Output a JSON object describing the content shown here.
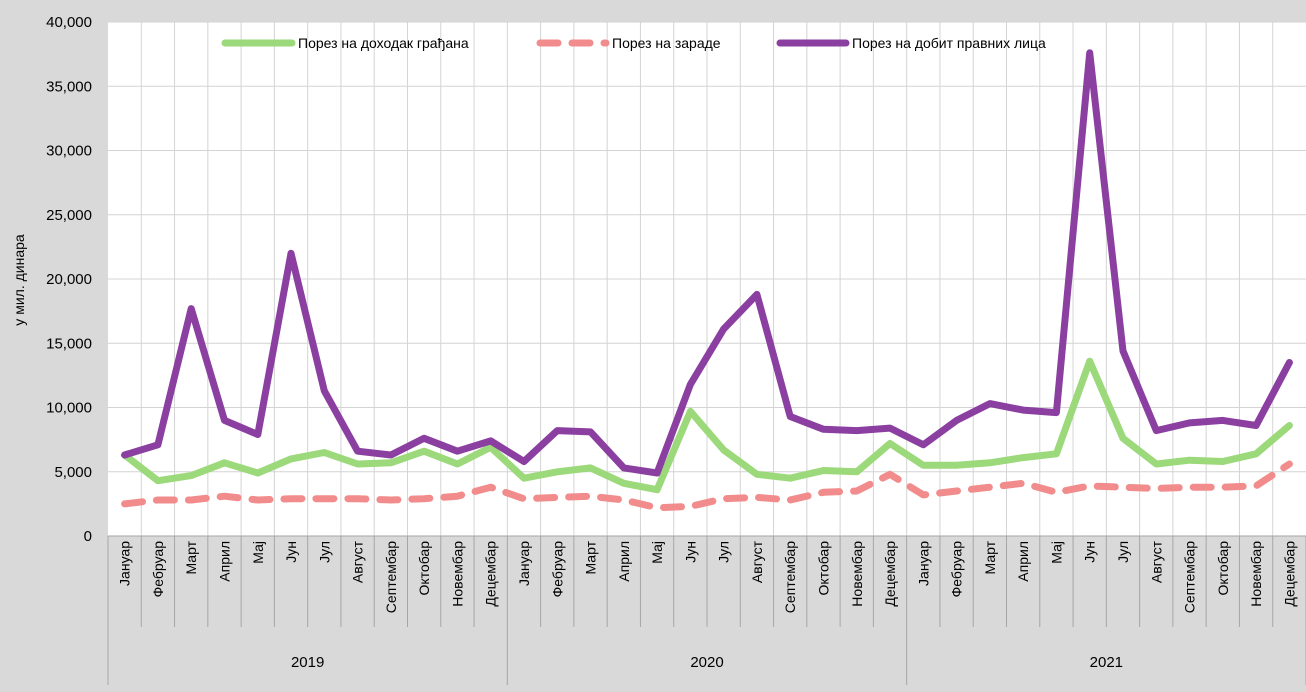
{
  "chart_data": {
    "type": "line",
    "ylabel": "у мил. динара",
    "ylim": [
      0,
      40000
    ],
    "yticks": [
      "0",
      "5,000",
      "10,000",
      "15,000",
      "20,000",
      "25,000",
      "30,000",
      "35,000",
      "40,000"
    ],
    "grid": true,
    "legend_position": "top",
    "years": [
      "2019",
      "2020",
      "2021"
    ],
    "months": [
      "Јануар",
      "Фебруар",
      "Март",
      "Април",
      "Мај",
      "Јун",
      "Јул",
      "Август",
      "Септембар",
      "Октобар",
      "Новембар",
      "Децембар"
    ],
    "series": [
      {
        "name": "Порез на доходак грађана",
        "color": "#9bd97a",
        "dashed": false,
        "values": [
          6300,
          4300,
          4700,
          5700,
          4900,
          6000,
          6500,
          5600,
          5700,
          6600,
          5600,
          6900,
          4500,
          5000,
          5300,
          4100,
          3600,
          9700,
          6700,
          4800,
          4500,
          5100,
          5000,
          7200,
          5500,
          5500,
          5700,
          6100,
          6400,
          13600,
          7600,
          5600,
          5900,
          5800,
          6400,
          8600
        ]
      },
      {
        "name": "Порез на зараде",
        "color": "#f28c8c",
        "dashed": true,
        "values": [
          2500,
          2800,
          2800,
          3100,
          2800,
          2900,
          2900,
          2900,
          2800,
          2900,
          3100,
          3800,
          2900,
          3000,
          3100,
          2800,
          2200,
          2300,
          2900,
          3000,
          2800,
          3400,
          3500,
          4800,
          3200,
          3500,
          3800,
          4100,
          3400,
          3900,
          3800,
          3700,
          3800,
          3800,
          3900,
          5600
        ]
      },
      {
        "name": "Порез на добит правних лица",
        "color": "#8b3fa0",
        "dashed": false,
        "values": [
          6300,
          7100,
          17700,
          9000,
          7900,
          22000,
          11300,
          6600,
          6300,
          7600,
          6600,
          7400,
          5800,
          8200,
          8100,
          5300,
          4900,
          11800,
          16100,
          18800,
          9300,
          8300,
          8200,
          8400,
          7100,
          9000,
          10300,
          9800,
          9600,
          37600,
          14400,
          8200,
          8800,
          9000,
          8600,
          13500
        ]
      }
    ]
  }
}
